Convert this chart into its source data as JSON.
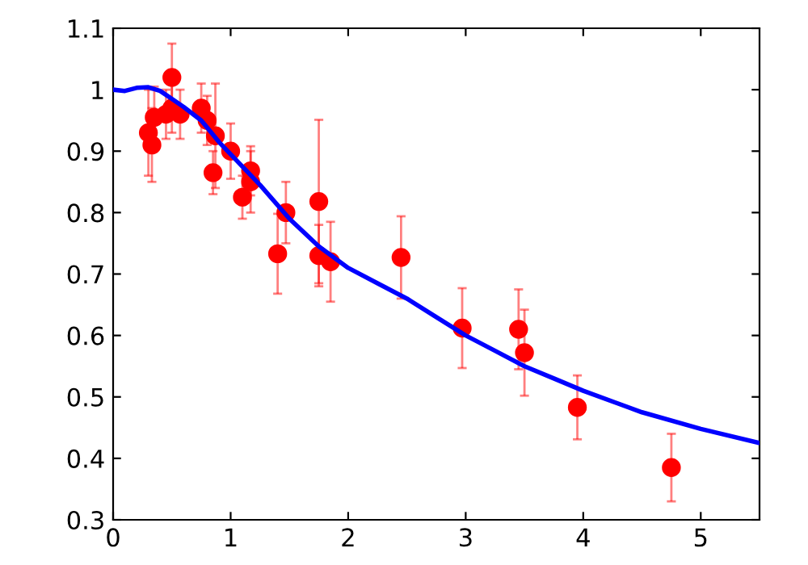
{
  "chart_data": {
    "type": "scatter",
    "xlim": [
      0,
      5.5
    ],
    "ylim": [
      0.3,
      1.1
    ],
    "xticks": [
      0,
      1,
      2,
      3,
      4,
      5
    ],
    "yticks": [
      0.3,
      0.4,
      0.5,
      0.6,
      0.7,
      0.8,
      0.9,
      1,
      1.1
    ],
    "grid": false,
    "legend": false,
    "series": [
      {
        "color": "#ff0000",
        "marker": "circle",
        "x": [
          0.3,
          0.33,
          0.35,
          0.45,
          0.5,
          0.5,
          0.57,
          0.75,
          0.8,
          0.85,
          0.87,
          1.0,
          1.1,
          1.17,
          1.17,
          1.4,
          1.47,
          1.75,
          1.75,
          1.85,
          2.45,
          2.97,
          3.45,
          3.5,
          3.95,
          4.75
        ],
        "values": [
          0.93,
          0.91,
          0.955,
          0.96,
          1.02,
          0.97,
          0.96,
          0.97,
          0.95,
          0.865,
          0.925,
          0.9,
          0.825,
          0.868,
          0.85,
          0.733,
          0.8,
          0.818,
          0.73,
          0.72,
          0.727,
          0.612,
          0.61,
          0.572,
          0.483,
          0.385
        ],
        "errors": [
          0.07,
          0.06,
          0.05,
          0.04,
          0.055,
          0.04,
          0.04,
          0.04,
          0.04,
          0.035,
          0.085,
          0.045,
          0.035,
          0.04,
          0.05,
          0.065,
          0.05,
          0.133,
          0.05,
          0.065,
          0.067,
          0.065,
          0.065,
          0.07,
          0.052,
          0.055
        ]
      },
      {
        "type": "line",
        "color": "#0000ff",
        "line_style": "solid",
        "marker": "none",
        "x": [
          0,
          0.1,
          0.2,
          0.3,
          0.4,
          0.5,
          0.6,
          0.75,
          0.9,
          1,
          1.25,
          1.5,
          1.75,
          2,
          2.25,
          2.5,
          2.75,
          3,
          3.25,
          3.5,
          3.75,
          4,
          4.5,
          5,
          5.5
        ],
        "values": [
          1.0,
          0.998,
          1.003,
          1.004,
          0.998,
          0.985,
          0.972,
          0.95,
          0.915,
          0.895,
          0.845,
          0.79,
          0.745,
          0.71,
          0.685,
          0.66,
          0.63,
          0.6,
          0.575,
          0.55,
          0.53,
          0.51,
          0.475,
          0.448,
          0.425
        ]
      }
    ]
  }
}
